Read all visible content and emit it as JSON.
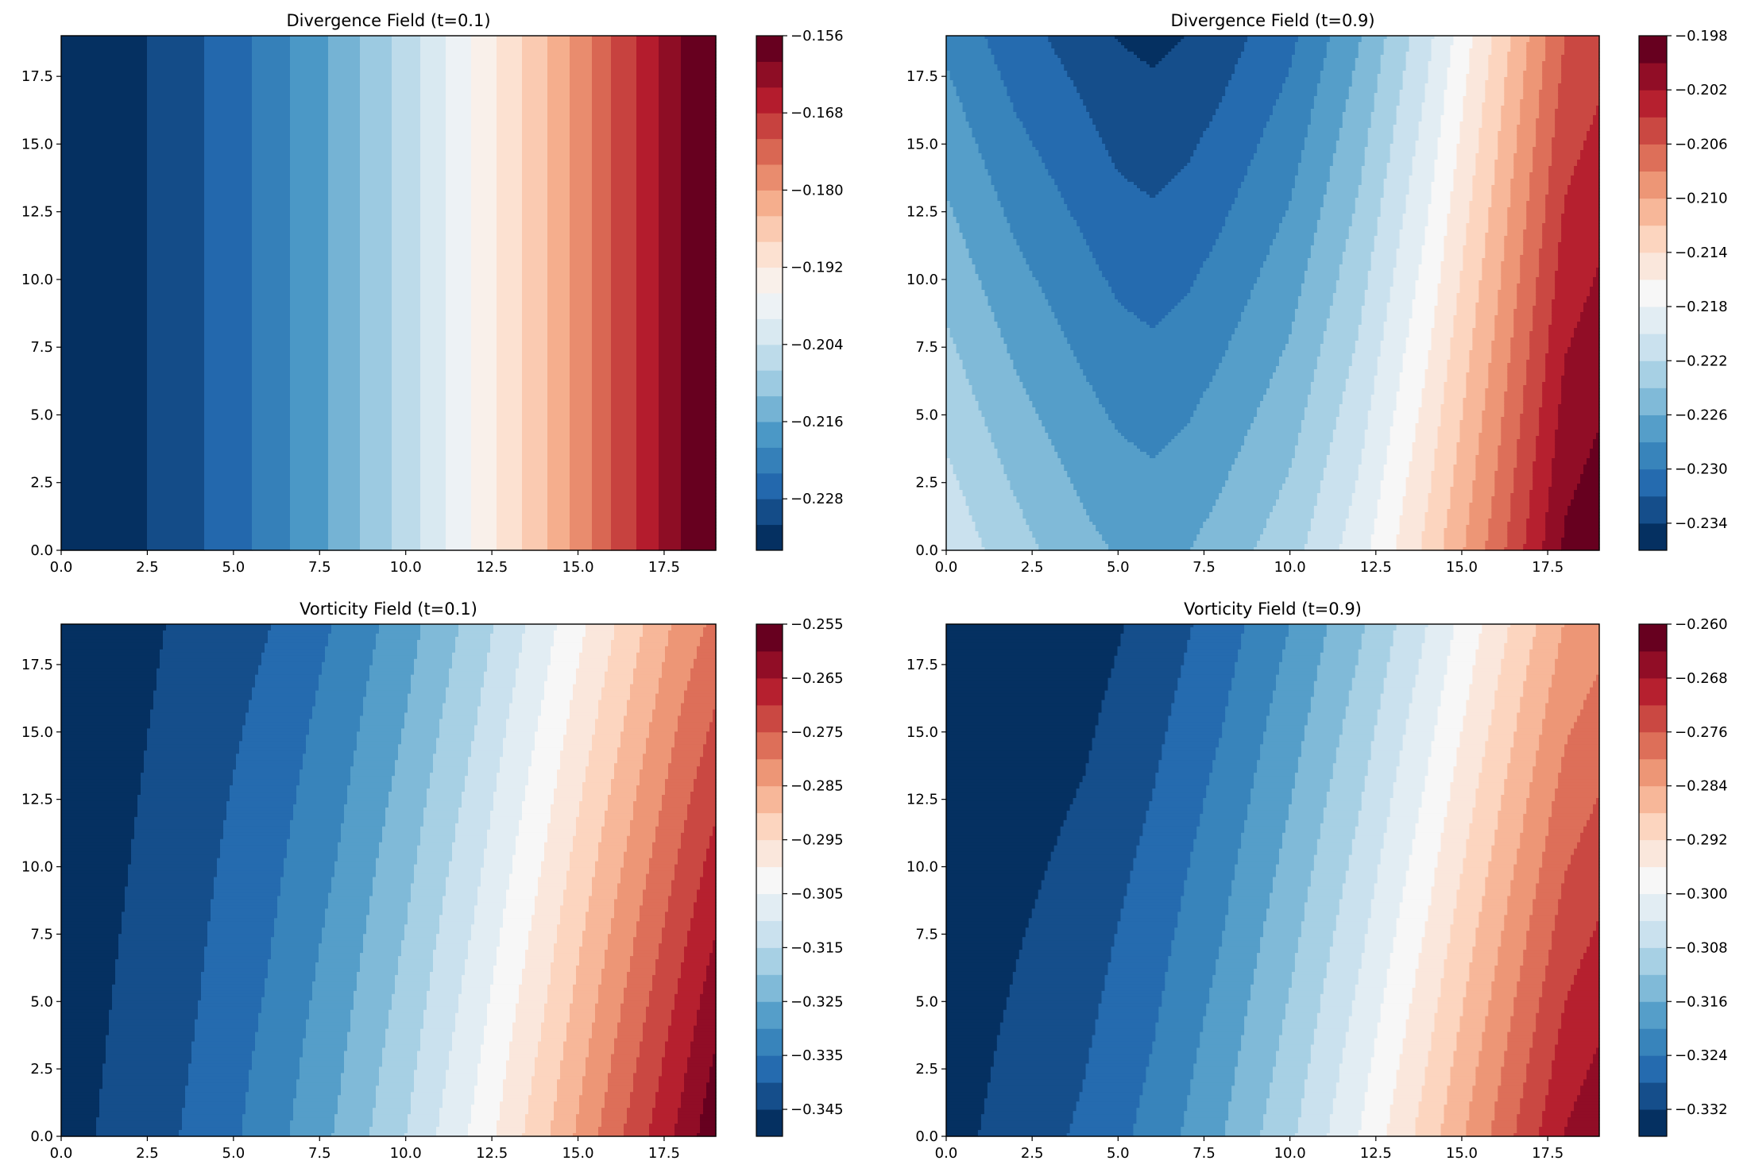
{
  "figure": {
    "panels": [
      {
        "title": "Divergence Field (t=0.1)"
      },
      {
        "title": "Divergence Field (t=0.9)"
      },
      {
        "title": "Vorticity Field (t=0.1)"
      },
      {
        "title": "Vorticity Field (t=0.9)"
      }
    ]
  },
  "chart_data": [
    {
      "type": "heatmap",
      "subtype": "filled-contour",
      "title": "Divergence Field (t=0.1)",
      "colormap": "RdBu_r",
      "xlim": [
        0,
        19
      ],
      "ylim": [
        0,
        19
      ],
      "xticks": [
        "0.0",
        "2.5",
        "5.0",
        "7.5",
        "10.0",
        "12.5",
        "15.0",
        "17.5"
      ],
      "yticks": [
        "0.0",
        "2.5",
        "5.0",
        "7.5",
        "10.0",
        "12.5",
        "15.0",
        "17.5"
      ],
      "levels": {
        "min": -0.236,
        "max": -0.156,
        "step": 0.004
      },
      "colorbar_ticks": [
        "−0.156",
        "−0.168",
        "−0.180",
        "−0.192",
        "−0.204",
        "−0.216",
        "−0.228"
      ],
      "grid": {
        "x": [
          0,
          2,
          4,
          6,
          8,
          10,
          12,
          14,
          16,
          18,
          19
        ],
        "y": [
          0,
          19
        ],
        "z": [
          [
            -0.2345,
            -0.233,
            -0.2285,
            -0.2226,
            -0.2149,
            -0.206,
            -0.1955,
            -0.1847,
            -0.172,
            -0.16,
            -0.157
          ],
          [
            -0.2345,
            -0.233,
            -0.2285,
            -0.2226,
            -0.2149,
            -0.206,
            -0.1955,
            -0.1847,
            -0.172,
            -0.16,
            -0.157
          ]
        ]
      }
    },
    {
      "type": "heatmap",
      "subtype": "filled-contour",
      "title": "Divergence Field (t=0.9)",
      "colormap": "RdBu_r",
      "xlim": [
        0,
        19
      ],
      "ylim": [
        0,
        19
      ],
      "xticks": [
        "0.0",
        "2.5",
        "5.0",
        "7.5",
        "10.0",
        "12.5",
        "15.0",
        "17.5"
      ],
      "yticks": [
        "0.0",
        "2.5",
        "5.0",
        "7.5",
        "10.0",
        "12.5",
        "15.0",
        "17.5"
      ],
      "levels": {
        "min": -0.236,
        "max": -0.198,
        "step": 0.002
      },
      "colorbar_ticks": [
        "−0.198",
        "−0.202",
        "−0.206",
        "−0.210",
        "−0.214",
        "−0.218",
        "−0.222",
        "−0.226",
        "−0.230",
        "−0.234"
      ],
      "grid": {
        "x": [
          0,
          2,
          4,
          5,
          6,
          7,
          8,
          10,
          12,
          14,
          16,
          18,
          19
        ],
        "y": [
          0,
          19
        ],
        "z": [
          [
            -0.2205,
            -0.2232,
            -0.2254,
            -0.2262,
            -0.2266,
            -0.2261,
            -0.2251,
            -0.2228,
            -0.2189,
            -0.2134,
            -0.207,
            -0.1996,
            -0.1985
          ],
          [
            -0.2285,
            -0.2312,
            -0.233,
            -0.2341,
            -0.2345,
            -0.234,
            -0.233,
            -0.2305,
            -0.2262,
            -0.2206,
            -0.2136,
            -0.206,
            -0.2048
          ]
        ]
      }
    },
    {
      "type": "heatmap",
      "subtype": "filled-contour",
      "title": "Vorticity Field (t=0.1)",
      "colormap": "RdBu_r",
      "xlim": [
        0,
        19
      ],
      "ylim": [
        0,
        19
      ],
      "xticks": [
        "0.0",
        "2.5",
        "5.0",
        "7.5",
        "10.0",
        "12.5",
        "15.0",
        "17.5"
      ],
      "yticks": [
        "0.0",
        "2.5",
        "5.0",
        "7.5",
        "10.0",
        "12.5",
        "15.0",
        "17.5"
      ],
      "levels": {
        "min": -0.35,
        "max": -0.255,
        "step": 0.005
      },
      "colorbar_ticks": [
        "−0.255",
        "−0.265",
        "−0.275",
        "−0.285",
        "−0.295",
        "−0.305",
        "−0.315",
        "−0.325",
        "−0.335",
        "−0.345"
      ],
      "grid": {
        "x": [
          0,
          2,
          4,
          6,
          8,
          10,
          12,
          14,
          16,
          18,
          19
        ],
        "y": [
          0,
          19
        ],
        "z": [
          [
            -0.347,
            -0.343,
            -0.3388,
            -0.3325,
            -0.3245,
            -0.315,
            -0.3038,
            -0.2913,
            -0.2771,
            -0.2635,
            -0.256
          ],
          [
            -0.35,
            -0.3467,
            -0.3434,
            -0.3402,
            -0.3346,
            -0.3271,
            -0.318,
            -0.3072,
            -0.2956,
            -0.2832,
            -0.2786
          ]
        ]
      }
    },
    {
      "type": "heatmap",
      "subtype": "filled-contour",
      "title": "Vorticity Field (t=0.9)",
      "colormap": "RdBu_r",
      "xlim": [
        0,
        19
      ],
      "ylim": [
        0,
        19
      ],
      "xticks": [
        "0.0",
        "2.5",
        "5.0",
        "7.5",
        "10.0",
        "12.5",
        "15.0",
        "17.5"
      ],
      "yticks": [
        "0.0",
        "2.5",
        "5.0",
        "7.5",
        "10.0",
        "12.5",
        "15.0",
        "17.5"
      ],
      "levels": {
        "min": -0.336,
        "max": -0.26,
        "step": 0.004
      },
      "colorbar_ticks": [
        "−0.260",
        "−0.268",
        "−0.276",
        "−0.284",
        "−0.292",
        "−0.300",
        "−0.308",
        "−0.316",
        "−0.324",
        "−0.332"
      ],
      "grid": {
        "x": [
          0,
          2,
          4,
          6,
          8,
          10,
          12,
          14,
          16,
          18,
          19
        ],
        "y": [
          0,
          19
        ],
        "z": [
          [
            -0.3335,
            -0.3303,
            -0.3273,
            -0.3226,
            -0.3163,
            -0.3088,
            -0.3,
            -0.29,
            -0.279,
            -0.2678,
            -0.265
          ],
          [
            -0.337,
            -0.3355,
            -0.334,
            -0.3307,
            -0.3261,
            -0.32,
            -0.3128,
            -0.304,
            -0.294,
            -0.2838,
            -0.2815
          ]
        ]
      }
    }
  ]
}
